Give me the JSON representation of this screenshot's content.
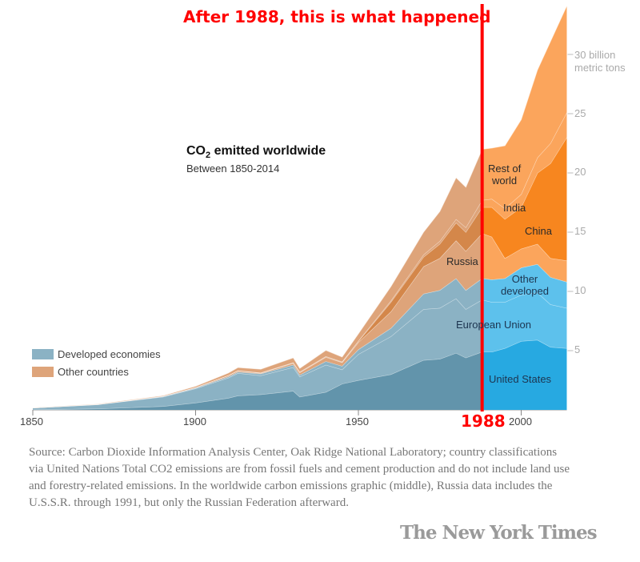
{
  "annotation": {
    "headline": "After 1988, this is what happened",
    "marker_year_label": "1988",
    "marker_year": 1988,
    "color": "#ff0000"
  },
  "chart_data": {
    "type": "area",
    "stacked": true,
    "title": "CO₂ emitted worldwide",
    "title_parts": {
      "pre": "CO",
      "sub": "2",
      "post": " emitted worldwide"
    },
    "subtitle": "Between 1850-2014",
    "unit_label": [
      "30 billion",
      "metric tons"
    ],
    "x": [
      1850,
      1870,
      1890,
      1900,
      1910,
      1913,
      1920,
      1930,
      1932,
      1940,
      1945,
      1950,
      1960,
      1970,
      1975,
      1980,
      1983,
      1988,
      1991,
      1995,
      2000,
      2005,
      2009,
      2014
    ],
    "series": [
      {
        "name": "United States",
        "values": [
          0.02,
          0.1,
          0.3,
          0.6,
          1.0,
          1.2,
          1.3,
          1.6,
          1.1,
          1.5,
          2.2,
          2.5,
          3.0,
          4.2,
          4.3,
          4.8,
          4.4,
          4.9,
          4.9,
          5.2,
          5.8,
          5.9,
          5.3,
          5.2
        ],
        "color_before": "#6294ab",
        "color_after": "#27a9e1",
        "group": "Developed economies"
      },
      {
        "name": "European Union",
        "values": [
          0.15,
          0.35,
          0.8,
          1.2,
          1.7,
          1.9,
          1.6,
          2.0,
          1.7,
          2.3,
          1.2,
          2.2,
          3.2,
          4.3,
          4.3,
          4.6,
          4.1,
          4.4,
          4.2,
          3.9,
          3.9,
          4.0,
          3.6,
          3.4
        ],
        "color_before": "#8bb2c4",
        "color_after": "#5dc1ec",
        "group": "Developed economies"
      },
      {
        "name": "Other developed",
        "values": [
          0.0,
          0.01,
          0.03,
          0.05,
          0.1,
          0.1,
          0.15,
          0.2,
          0.15,
          0.3,
          0.3,
          0.4,
          0.7,
          1.3,
          1.5,
          1.7,
          1.6,
          1.8,
          1.9,
          2.0,
          2.3,
          2.4,
          2.3,
          2.2
        ],
        "color_before": "#8bb2c4",
        "color_after": "#5dc1ec",
        "group": "Developed economies"
      },
      {
        "name": "Russia",
        "values": [
          0,
          0.01,
          0.03,
          0.05,
          0.1,
          0.1,
          0.05,
          0.15,
          0.2,
          0.35,
          0.3,
          0.6,
          1.4,
          2.3,
          2.7,
          3.2,
          3.3,
          3.8,
          3.6,
          1.7,
          1.6,
          1.7,
          1.6,
          1.8
        ],
        "color_before": "#dea47a",
        "color_after": "#fba55c",
        "group": "Other countries"
      },
      {
        "name": "China",
        "values": [
          0,
          0,
          0,
          0,
          0,
          0.01,
          0.02,
          0.02,
          0.03,
          0.04,
          0.03,
          0.08,
          0.8,
          0.8,
          1.2,
          1.5,
          1.6,
          2.2,
          2.5,
          3.3,
          3.5,
          6.0,
          8.0,
          10.4
        ],
        "color_before": "#d4874a",
        "color_after": "#f7861f",
        "group": "Other countries"
      },
      {
        "name": "India",
        "values": [
          0,
          0,
          0,
          0,
          0.01,
          0.02,
          0.02,
          0.03,
          0.03,
          0.04,
          0.04,
          0.05,
          0.12,
          0.2,
          0.25,
          0.3,
          0.4,
          0.6,
          0.7,
          0.9,
          1.1,
          1.3,
          1.7,
          2.1
        ],
        "color_before": "#dea47a",
        "color_after": "#fba55c",
        "group": "Other countries"
      },
      {
        "name": "Rest of world",
        "values": [
          0.02,
          0.03,
          0.05,
          0.1,
          0.2,
          0.25,
          0.3,
          0.4,
          0.3,
          0.5,
          0.4,
          0.6,
          1.2,
          1.9,
          2.5,
          3.5,
          3.4,
          4.3,
          4.3,
          5.3,
          6.3,
          7.4,
          8.6,
          9.0
        ],
        "color_before": "#dea47a",
        "color_after": "#fba55c",
        "group": "Other countries"
      }
    ],
    "series_labels": {
      "rest_of_world": [
        "Rest of",
        "world"
      ],
      "india": "India",
      "china": "China",
      "russia": "Russia",
      "other_developed": [
        "Other",
        "developed"
      ],
      "european_union": "European Union",
      "united_states": "United States"
    },
    "xlim": [
      1850,
      2014
    ],
    "ylim": [
      0,
      34
    ],
    "x_ticks": [
      "1850",
      "1900",
      "1950",
      "2000"
    ],
    "x_tick_values": [
      1850,
      1900,
      1950,
      2000
    ],
    "y_ticks": [
      "5",
      "10",
      "15",
      "20",
      "25"
    ],
    "y_tick_values": [
      5,
      10,
      15,
      20,
      25,
      30
    ],
    "y_axis_side": "right",
    "grid": false,
    "legend": {
      "placement": "bottom-left",
      "items": [
        {
          "label": "Developed economies",
          "color": "#8bb2c4"
        },
        {
          "label": "Other countries",
          "color": "#dea47a"
        }
      ]
    }
  },
  "source": "Source: Carbon Dioxide Information Analysis Center, Oak Ridge National Laboratory; country classifications via United Nations Total CO2 emissions are from fossil fuels and cement production and do not include land use and forestry-related emissions. In the worldwide carbon emissions graphic (middle), Russia data includes the U.S.S.R. through 1991, but only the Russian Federation afterward.",
  "logo": "The New York Times"
}
